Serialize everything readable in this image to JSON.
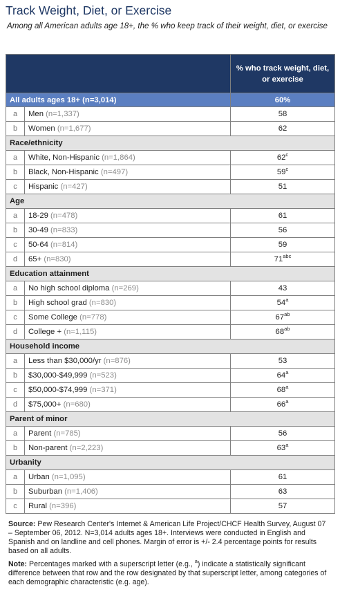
{
  "title": "Track Weight, Diet, or Exercise",
  "subtitle": "Among all American adults age 18+, the % who keep track of their weight, diet, or exercise",
  "header": {
    "col3": "% who track weight, diet, or exercise"
  },
  "all_row": {
    "label": "All adults ages 18+ (n=3,014)",
    "value": "60%"
  },
  "sections": [
    {
      "title": "",
      "rows": [
        {
          "letter": "a",
          "label": "Men",
          "n": "(n=1,337)",
          "value": "58",
          "sup": ""
        },
        {
          "letter": "b",
          "label": "Women",
          "n": "(n=1,677)",
          "value": "62",
          "sup": ""
        }
      ]
    },
    {
      "title": "Race/ethnicity",
      "rows": [
        {
          "letter": "a",
          "label": "White, Non-Hispanic",
          "n": "(n=1,864)",
          "value": "62",
          "sup": "c"
        },
        {
          "letter": "b",
          "label": "Black, Non-Hispanic",
          "n": "(n=497)",
          "value": "59",
          "sup": "c"
        },
        {
          "letter": "c",
          "label": "Hispanic",
          "n": "(n=427)",
          "value": "51",
          "sup": ""
        }
      ]
    },
    {
      "title": "Age",
      "rows": [
        {
          "letter": "a",
          "label": "18-29",
          "n": "(n=478)",
          "value": "61",
          "sup": ""
        },
        {
          "letter": "b",
          "label": "30-49",
          "n": "(n=833)",
          "value": "56",
          "sup": ""
        },
        {
          "letter": "c",
          "label": "50-64",
          "n": "(n=814)",
          "value": "59",
          "sup": ""
        },
        {
          "letter": "d",
          "label": "65+",
          "n": "(n=830)",
          "value": "71",
          "sup": "abc"
        }
      ]
    },
    {
      "title": "Education attainment",
      "rows": [
        {
          "letter": "a",
          "label": "No high school diploma",
          "n": "(n=269)",
          "value": "43",
          "sup": ""
        },
        {
          "letter": "b",
          "label": "High school grad",
          "n": "(n=830)",
          "value": "54",
          "sup": "a"
        },
        {
          "letter": "c",
          "label": "Some College",
          "n": "(n=778)",
          "value": "67",
          "sup": "ab"
        },
        {
          "letter": "d",
          "label": "College +",
          "n": "(n=1,115)",
          "value": "68",
          "sup": "ab"
        }
      ]
    },
    {
      "title": "Household income",
      "rows": [
        {
          "letter": "a",
          "label": "Less than $30,000/yr",
          "n": "(n=876)",
          "value": "53",
          "sup": ""
        },
        {
          "letter": "b",
          "label": "$30,000-$49,999",
          "n": "(n=523)",
          "value": "64",
          "sup": "a"
        },
        {
          "letter": "c",
          "label": "$50,000-$74,999",
          "n": "(n=371)",
          "value": "68",
          "sup": "a"
        },
        {
          "letter": "d",
          "label": "$75,000+",
          "n": "(n=680)",
          "value": "66",
          "sup": "a"
        }
      ]
    },
    {
      "title": "Parent of minor",
      "rows": [
        {
          "letter": "a",
          "label": "Parent",
          "n": "(n=785)",
          "value": "56",
          "sup": ""
        },
        {
          "letter": "b",
          "label": "Non-parent",
          "n": "(n=2,223)",
          "value": "63",
          "sup": "a"
        }
      ]
    },
    {
      "title": "Urbanity",
      "rows": [
        {
          "letter": "a",
          "label": "Urban",
          "n": "(n=1,095)",
          "value": "61",
          "sup": ""
        },
        {
          "letter": "b",
          "label": "Suburban",
          "n": "(n=1,406)",
          "value": "63",
          "sup": ""
        },
        {
          "letter": "c",
          "label": "Rural",
          "n": "(n=396)",
          "value": "57",
          "sup": ""
        }
      ]
    }
  ],
  "source": {
    "label": "Source:",
    "text": "Pew Research Center's Internet & American Life Project/CHCF Health Survey, August 07 – September 06, 2012. N=3,014 adults ages 18+. Interviews were conducted in English and Spanish and on landline and cell phones.  Margin of error is +/- 2.4 percentage points for results based on all adults."
  },
  "note": {
    "label": "Note:",
    "text_before": "Percentages marked with a superscript letter (e.g., ",
    "sup": "a",
    "text_after": ") indicate a statistically significant difference between that row and the row designated by that superscript letter, among categories of each demographic characteristic (e.g. age)."
  },
  "colors": {
    "title": "#1f3864",
    "header_bg": "#1f3864",
    "all_row_bg": "#5b7fc1",
    "section_bg": "#e3e3e3"
  }
}
